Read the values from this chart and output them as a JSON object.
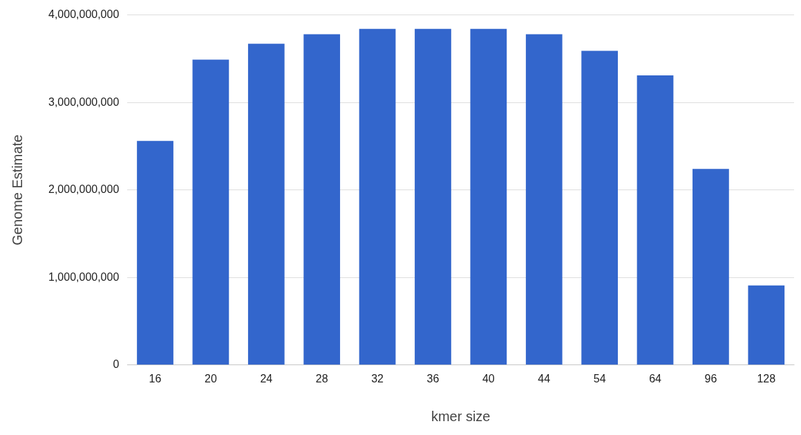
{
  "chart_data": {
    "type": "bar",
    "xlabel": "kmer size",
    "ylabel": "Genome Estimate",
    "categories": [
      "16",
      "20",
      "24",
      "28",
      "32",
      "36",
      "40",
      "44",
      "54",
      "64",
      "96",
      "128"
    ],
    "values": [
      2560000000,
      3490000000,
      3670000000,
      3780000000,
      3840000000,
      3840000000,
      3840000000,
      3780000000,
      3590000000,
      3310000000,
      2240000000,
      910000000
    ],
    "color": "#3366cc",
    "ylim": [
      0,
      4000000000
    ],
    "yticks": [
      0,
      {
        "value": 1000000000,
        "label": "1,000,000,000"
      },
      {
        "value": 2000000000,
        "label": "2,000,000,000"
      },
      {
        "value": 3000000000,
        "label": "3,000,000,000"
      },
      {
        "value": 4000000000,
        "label": "4,000,000,000"
      }
    ],
    "grid": "y",
    "legend": false
  }
}
